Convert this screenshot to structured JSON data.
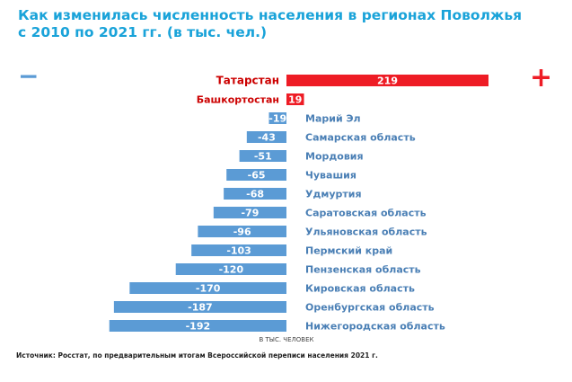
{
  "title_lines": [
    "Как изменилась численность населения в регионах Поволжья",
    "с 2010 по 2021 гг. (в тыс. чел.)"
  ],
  "minus_symbol": "−",
  "plus_symbol": "+",
  "source": "Источник: Росстат, по предварительным итогам Всероссийской переписи населения 2021 г.",
  "colors": {
    "title": "#1aa3d9",
    "positive": "#ee1c25",
    "negative": "#5b9bd5",
    "negative_label": "#4a7fb5",
    "positive_label": "#cc0000"
  },
  "chart_data": {
    "type": "bar",
    "orientation": "horizontal",
    "xlabel": "В ТЫС. ЧЕЛОВЕК",
    "categories": [
      "Татарстан",
      "Башкортостан",
      "Марий Эл",
      "Самарская область",
      "Мордовия",
      "Чувашия",
      "Удмуртия",
      "Саратовская область",
      "Ульяновская область",
      "Пермский край",
      "Пензенская область",
      "Кировская область",
      "Оренбургская область",
      "Нижегородская область"
    ],
    "values": [
      219,
      19,
      -19,
      -43,
      -51,
      -65,
      -68,
      -79,
      -96,
      -103,
      -120,
      -170,
      -187,
      -192
    ]
  }
}
